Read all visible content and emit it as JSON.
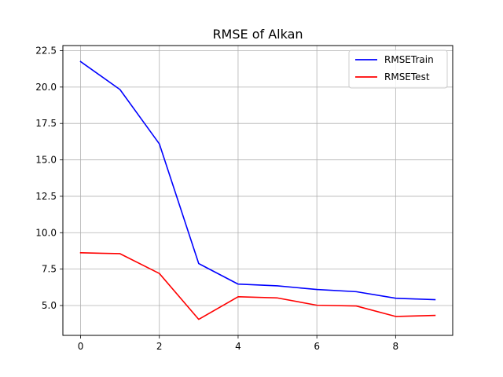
{
  "chart_data": {
    "type": "line",
    "title": "RMSE of Alkan",
    "xlabel": "",
    "ylabel": "",
    "x": [
      0,
      1,
      2,
      3,
      4,
      5,
      6,
      7,
      8,
      9
    ],
    "xlim": [
      -0.45,
      9.45
    ],
    "ylim": [
      2.95,
      22.85
    ],
    "xticks": [
      0,
      2,
      4,
      6,
      8
    ],
    "yticks": [
      5.0,
      7.5,
      10.0,
      12.5,
      15.0,
      17.5,
      20.0,
      22.5
    ],
    "xtick_labels": [
      "0",
      "2",
      "4",
      "6",
      "8"
    ],
    "ytick_labels": [
      "5.0",
      "7.5",
      "10.0",
      "12.5",
      "15.0",
      "17.5",
      "20.0",
      "22.5"
    ],
    "grid": true,
    "legend_position": "upper right",
    "series": [
      {
        "name": "RMSETrain",
        "color": "#0000ff",
        "values": [
          21.75,
          19.83,
          16.1,
          7.88,
          6.47,
          6.35,
          6.1,
          5.95,
          5.5,
          5.4
        ]
      },
      {
        "name": "RMSETest",
        "color": "#ff0000",
        "values": [
          8.62,
          8.56,
          7.2,
          4.05,
          5.6,
          5.52,
          5.02,
          4.97,
          4.25,
          4.32
        ]
      }
    ]
  }
}
